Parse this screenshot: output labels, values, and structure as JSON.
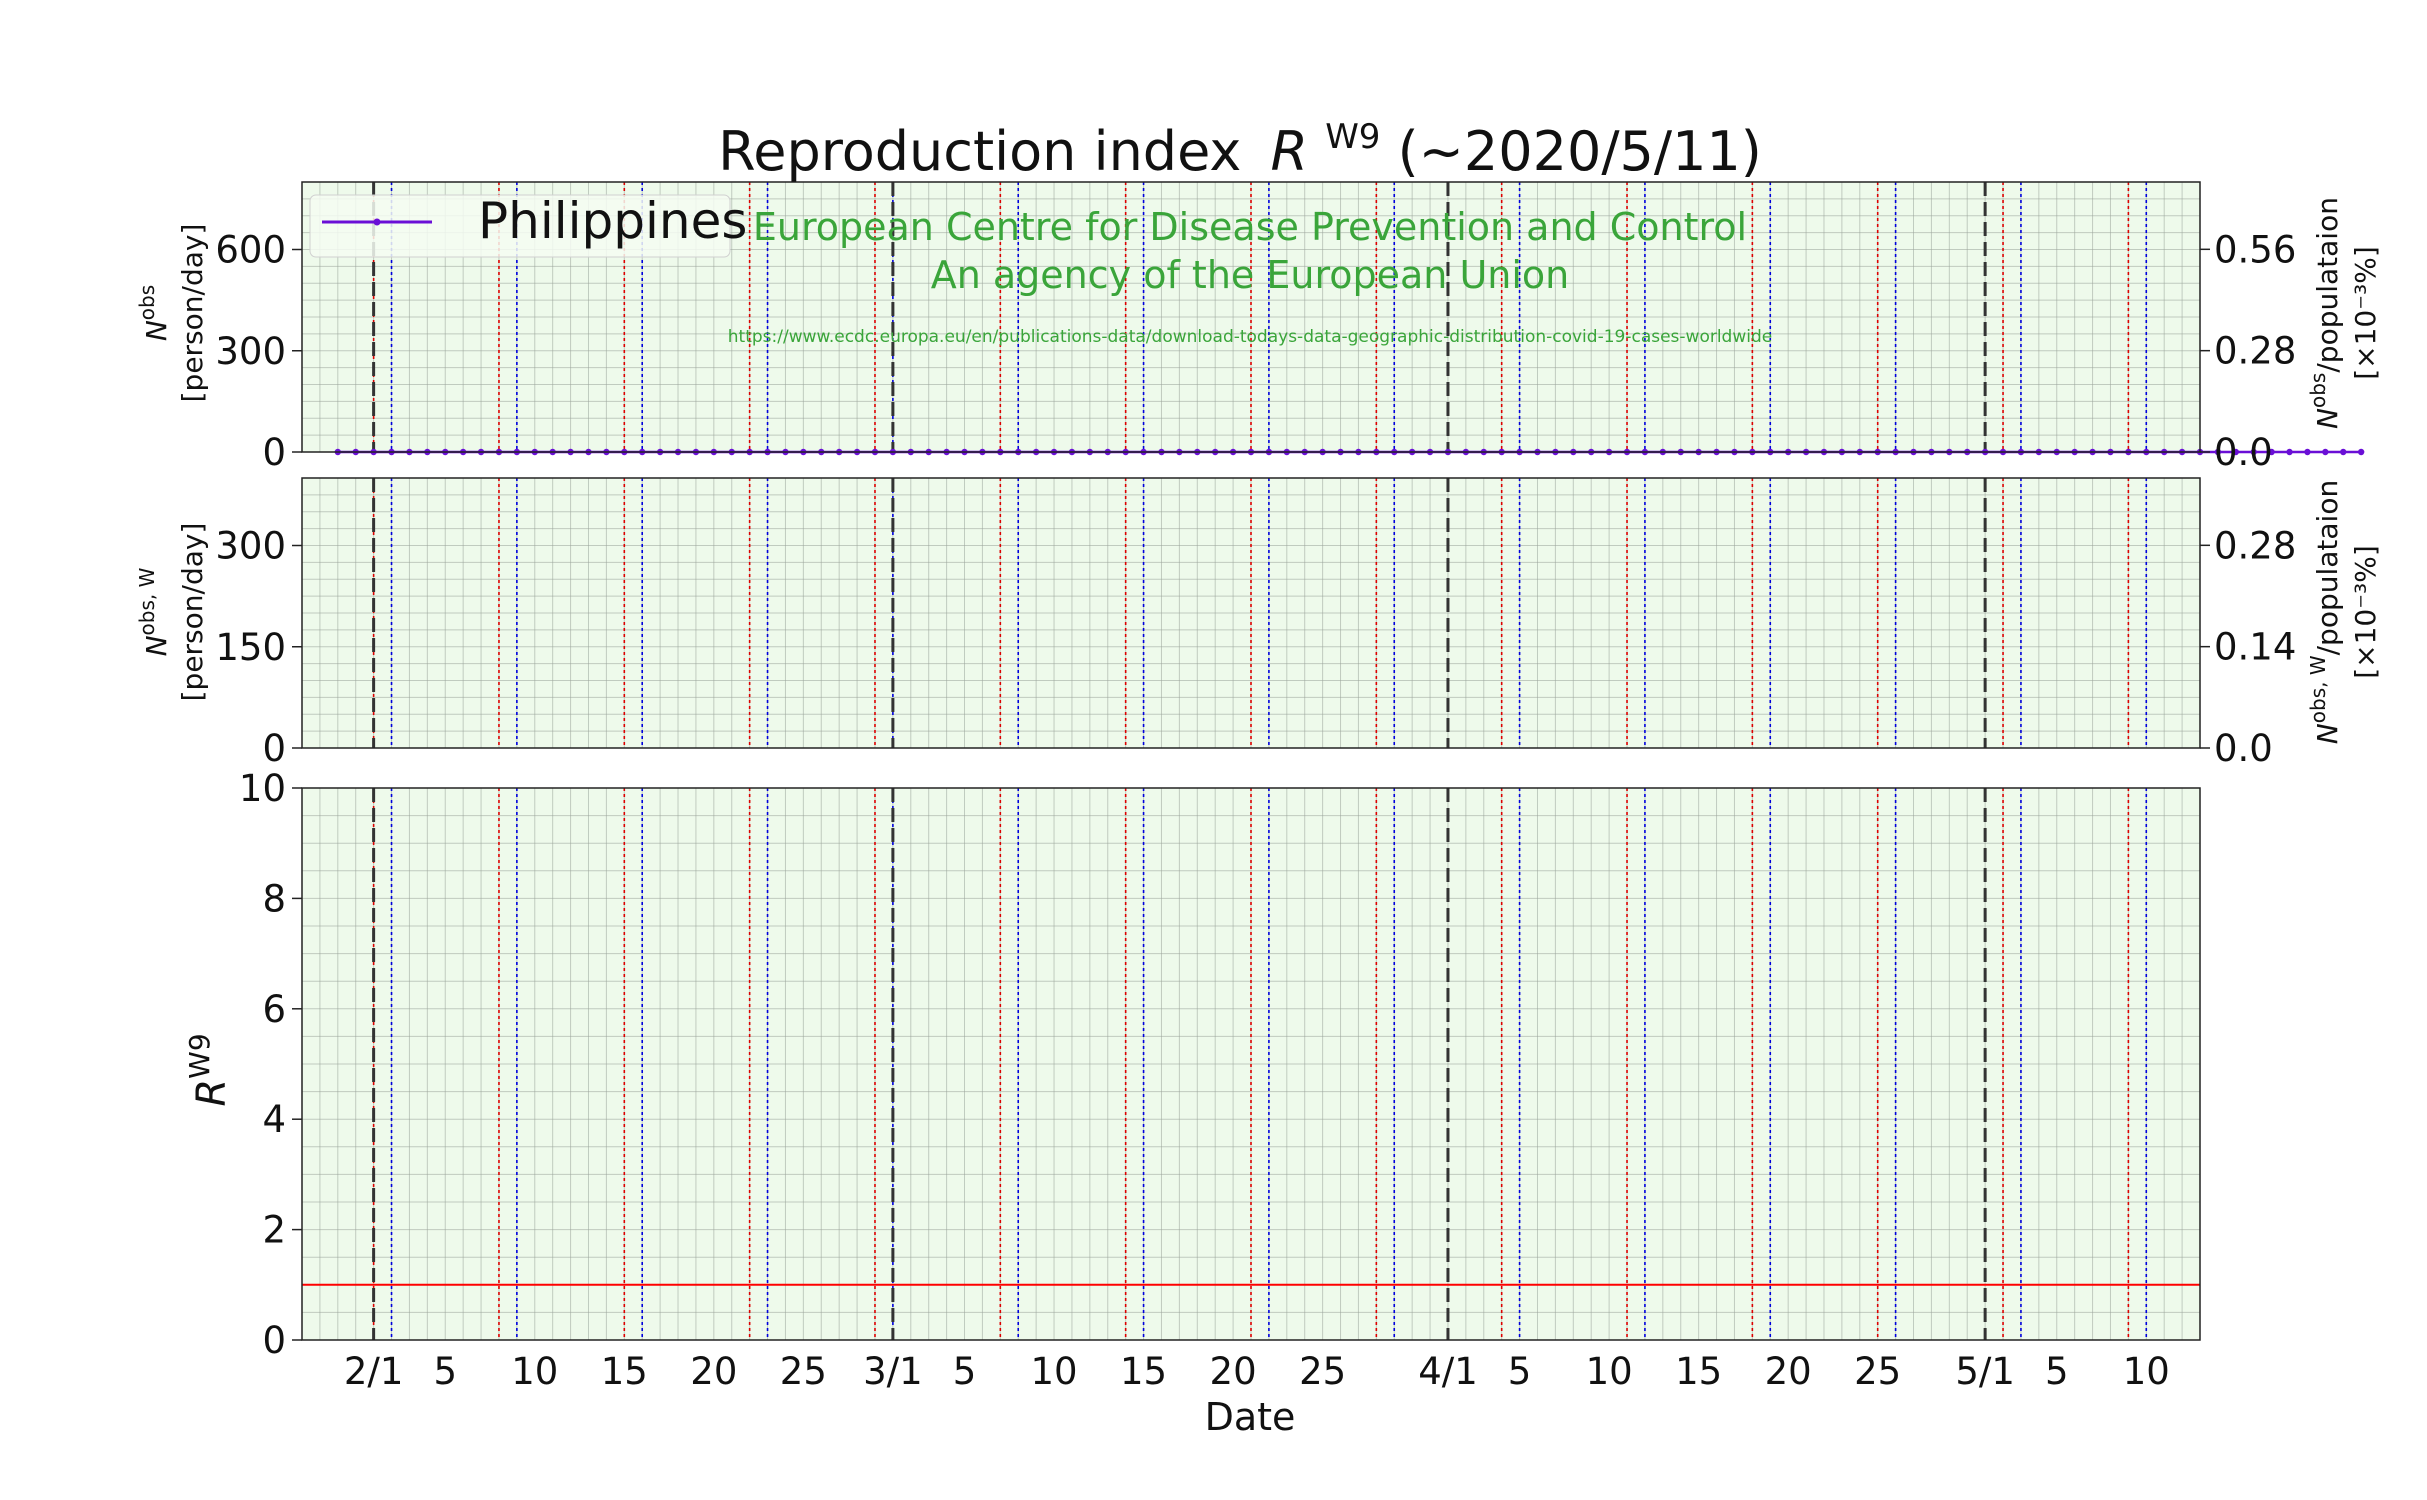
{
  "title": {
    "main": "Reproduction index",
    "symbol": "R",
    "superscript": "W9",
    "suffix": "(∼2020/5/11)"
  },
  "watermark": {
    "line1": "European Centre for Disease Prevention and Control",
    "line2": "An agency of the European Union",
    "url": "https://www.ecdc.europa.eu/en/publications-data/download-todays-data-geographic-distribution-covid-19-cases-worldwide"
  },
  "legend": {
    "label": "Philippines"
  },
  "axis_labels": {
    "x": "Date",
    "p1_left_sym": "N",
    "p1_left_sup": "obs",
    "p1_left_unit": "[person/day]",
    "p1_right_sym": "N",
    "p1_right_sup": "obs",
    "p1_right_rest": "/populataion",
    "p1_right_unit": "[×10⁻³%]",
    "p2_left_sym": "N",
    "p2_left_sup": "obs, W",
    "p2_left_unit": "[person/day]",
    "p2_right_sym": "N",
    "p2_right_sup": "obs, W",
    "p2_right_rest": "/populataion",
    "p2_right_unit": "[×10⁻³%]",
    "p3_left_sym": "R",
    "p3_left_sup": "W9"
  },
  "colors": {
    "series": "#6a0fd6",
    "panel_bg": "#eefaeb",
    "grid": "#9aa49a",
    "fill": "#c8d6ee",
    "threshold": "#ff0000",
    "month_line": "#333333",
    "red_week": "#dd0000",
    "blue_week": "#0000dd",
    "watermark": "#3aa53a"
  },
  "chart_data": [
    {
      "type": "line",
      "panel": "daily_cases",
      "series": [
        {
          "name": "Philippines",
          "x_start": "2020-01-30",
          "x_step_days": 1,
          "values": [
            0,
            0,
            0,
            0,
            0,
            0,
            0,
            0,
            0,
            0,
            0,
            0,
            0,
            0,
            0,
            0,
            0,
            0,
            0,
            0,
            0,
            0,
            0,
            0,
            0,
            0,
            0,
            0,
            0,
            0,
            0,
            0,
            0,
            0,
            0,
            0,
            0,
            0,
            0,
            0,
            0,
            0,
            0,
            0,
            0,
            0,
            0,
            0,
            0,
            0,
            0,
            0,
            0,
            0,
            0,
            0,
            0,
            0,
            0,
            0,
            0,
            0,
            0,
            0,
            0,
            0,
            0,
            0,
            0,
            0,
            0,
            0,
            0,
            0,
            0,
            0,
            0,
            0,
            0,
            0,
            0,
            0,
            0,
            0,
            0,
            0,
            0,
            0,
            0,
            0,
            0,
            0,
            0,
            0,
            0,
            0,
            0,
            0,
            0,
            0,
            0,
            0,
            0,
            0,
            0,
            0,
            0,
            0,
            0,
            0,
            0,
            0,
            0,
            0
          ]
        }
      ],
      "x_range": [
        "2020-01-28",
        "2020-05-13"
      ],
      "ylim": [
        0,
        800
      ],
      "yticks": [
        "0",
        "300",
        "600"
      ],
      "right_ylim": [
        0,
        0.746
      ],
      "right_yticks": [
        "0.0",
        "0.28",
        "0.56"
      ]
    },
    {
      "type": "line",
      "panel": "weekly_average",
      "series": [
        {
          "name": "Philippines",
          "x_start": "2020-01-30",
          "x_step_days": 1,
          "values": []
        }
      ],
      "ylim": [
        0,
        400
      ],
      "yticks": [
        "0",
        "150",
        "300"
      ],
      "right_ylim": [
        0,
        0.373
      ],
      "right_yticks": [
        "0.0",
        "0.14",
        "0.28"
      ]
    },
    {
      "type": "area",
      "panel": "reproduction_index",
      "series": [
        {
          "name": "Philippines",
          "x_start": "2020-01-30",
          "x_step_days": 1,
          "values": []
        }
      ],
      "threshold": 1,
      "ylim": [
        0,
        10
      ],
      "yticks": [
        "0",
        "2",
        "4",
        "6",
        "8",
        "10"
      ],
      "xticks": [
        {
          "date": "2020-02-01",
          "label": "2/1"
        },
        {
          "date": "2020-02-05",
          "label": "5"
        },
        {
          "date": "2020-02-10",
          "label": "10"
        },
        {
          "date": "2020-02-15",
          "label": "15"
        },
        {
          "date": "2020-02-20",
          "label": "20"
        },
        {
          "date": "2020-02-25",
          "label": "25"
        },
        {
          "date": "2020-03-01",
          "label": "3/1"
        },
        {
          "date": "2020-03-05",
          "label": "5"
        },
        {
          "date": "2020-03-10",
          "label": "10"
        },
        {
          "date": "2020-03-15",
          "label": "15"
        },
        {
          "date": "2020-03-20",
          "label": "20"
        },
        {
          "date": "2020-03-25",
          "label": "25"
        },
        {
          "date": "2020-04-01",
          "label": "4/1"
        },
        {
          "date": "2020-04-05",
          "label": "5"
        },
        {
          "date": "2020-04-10",
          "label": "10"
        },
        {
          "date": "2020-04-15",
          "label": "15"
        },
        {
          "date": "2020-04-20",
          "label": "20"
        },
        {
          "date": "2020-04-25",
          "label": "25"
        },
        {
          "date": "2020-05-01",
          "label": "5/1"
        },
        {
          "date": "2020-05-05",
          "label": "5"
        },
        {
          "date": "2020-05-10",
          "label": "10"
        }
      ]
    }
  ]
}
